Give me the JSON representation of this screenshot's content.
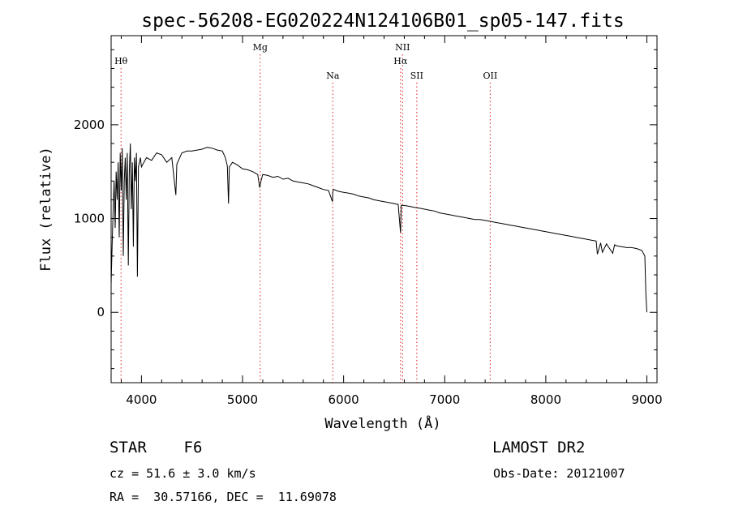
{
  "chart_data": {
    "type": "line",
    "title": "spec-56208-EG020224N124106B01_sp05-147.fits",
    "xlabel": "Wavelength (Å)",
    "ylabel": "Flux (relative)",
    "xlim": [
      3700,
      9100
    ],
    "ylim": [
      -750,
      2950
    ],
    "x_ticks": [
      4000,
      5000,
      6000,
      7000,
      8000,
      9000
    ],
    "y_ticks": [
      0,
      1000,
      2000
    ],
    "grid": false,
    "series": [
      {
        "x": [
          3700,
          3710,
          3720,
          3730,
          3740,
          3750,
          3760,
          3770,
          3780,
          3790,
          3800,
          3810,
          3820,
          3830,
          3840,
          3850,
          3860,
          3870,
          3880,
          3890,
          3900,
          3910,
          3920,
          3930,
          3940,
          3950,
          3960,
          3970,
          3980,
          3990,
          4000,
          4050,
          4100,
          4150,
          4200,
          4250,
          4300,
          4340,
          4350,
          4400,
          4450,
          4500,
          4550,
          4600,
          4650,
          4700,
          4750,
          4800,
          4830,
          4850,
          4861,
          4870,
          4900,
          4950,
          5000,
          5050,
          5100,
          5150,
          5170,
          5183,
          5200,
          5250,
          5300,
          5350,
          5400,
          5450,
          5500,
          5550,
          5600,
          5650,
          5700,
          5750,
          5800,
          5850,
          5890,
          5893,
          5900,
          5950,
          6000,
          6050,
          6100,
          6150,
          6200,
          6250,
          6300,
          6350,
          6400,
          6450,
          6500,
          6540,
          6563,
          6570,
          6600,
          6650,
          6700,
          6750,
          6800,
          6850,
          6900,
          6950,
          7000,
          7050,
          7100,
          7150,
          7200,
          7250,
          7300,
          7350,
          7400,
          7450,
          7500,
          7550,
          7600,
          7650,
          7700,
          7750,
          7800,
          7850,
          7900,
          7950,
          8000,
          8050,
          8100,
          8150,
          8200,
          8250,
          8300,
          8350,
          8400,
          8450,
          8498,
          8510,
          8542,
          8560,
          8600,
          8662,
          8680,
          8700,
          8750,
          8800,
          8850,
          8900,
          8950,
          8980,
          8990,
          9000
        ],
        "y": [
          300,
          700,
          1100,
          1400,
          900,
          1500,
          1200,
          1600,
          800,
          1700,
          1300,
          1750,
          600,
          1400,
          1650,
          1200,
          1700,
          500,
          1500,
          1800,
          1100,
          1600,
          700,
          1650,
          1400,
          1700,
          380,
          1550,
          1600,
          1650,
          1550,
          1650,
          1620,
          1700,
          1680,
          1600,
          1650,
          1250,
          1580,
          1700,
          1720,
          1720,
          1730,
          1740,
          1760,
          1750,
          1730,
          1720,
          1650,
          1560,
          1160,
          1550,
          1600,
          1570,
          1530,
          1520,
          1500,
          1470,
          1330,
          1400,
          1470,
          1460,
          1440,
          1450,
          1420,
          1430,
          1400,
          1390,
          1380,
          1370,
          1350,
          1330,
          1310,
          1300,
          1180,
          1290,
          1310,
          1290,
          1280,
          1270,
          1260,
          1240,
          1230,
          1220,
          1200,
          1190,
          1180,
          1170,
          1160,
          1150,
          850,
          1140,
          1140,
          1130,
          1120,
          1110,
          1100,
          1090,
          1080,
          1060,
          1050,
          1040,
          1030,
          1020,
          1010,
          1000,
          990,
          990,
          980,
          970,
          960,
          950,
          940,
          930,
          920,
          910,
          900,
          890,
          880,
          870,
          860,
          850,
          840,
          830,
          820,
          810,
          800,
          790,
          780,
          770,
          760,
          620,
          740,
          640,
          730,
          630,
          720,
          710,
          700,
          690,
          690,
          680,
          660,
          600,
          200,
          0
        ]
      }
    ],
    "lines": [
      {
        "name": "Hθ",
        "x": 3798,
        "label_row": 2
      },
      {
        "name": "Mg",
        "x": 5175,
        "label_row": 1
      },
      {
        "name": "Na",
        "x": 5893,
        "label_row": 3
      },
      {
        "name": "NII",
        "x": 6583,
        "label_row": 1
      },
      {
        "name": "Hα",
        "x": 6563,
        "label_row": 2
      },
      {
        "name": "SII",
        "x": 6724,
        "label_row": 3
      },
      {
        "name": "OII",
        "x": 7450,
        "label_row": 3
      }
    ],
    "line_color": "#dd2222"
  },
  "footer": {
    "class_label": "STAR",
    "subclass": "F6",
    "survey": "LAMOST DR2",
    "cz": "cz = 51.6 ± 3.0 km/s",
    "obs_date": "Obs-Date: 20121007",
    "coords": "RA =  30.57166, DEC =  11.69078"
  }
}
